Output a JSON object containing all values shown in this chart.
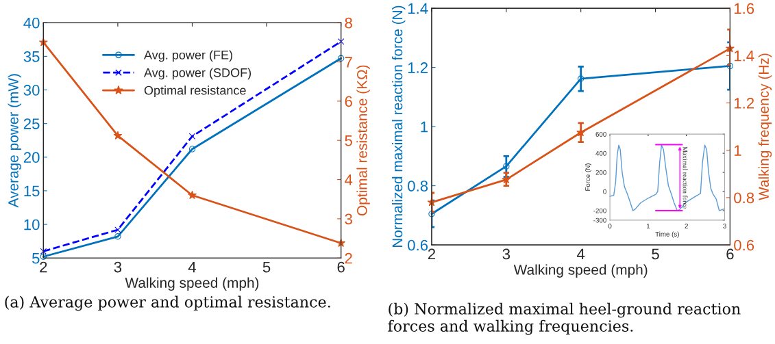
{
  "chart_data": [
    {
      "type": "line",
      "xlabel": "Walking speed (mph)",
      "ylabel": "Average power (mW)",
      "y2label": "Optimal resistance (KΩ)",
      "x": [
        2,
        3,
        4,
        6
      ],
      "xlim": [
        2,
        6
      ],
      "xticks": [
        2,
        3,
        4,
        5,
        6
      ],
      "ylim": [
        5,
        40
      ],
      "yticks": [
        5,
        10,
        15,
        20,
        25,
        30,
        35,
        40
      ],
      "y2lim": [
        2,
        8
      ],
      "y2ticks": [
        2,
        3,
        4,
        5,
        6,
        7,
        8
      ],
      "legend": "top",
      "grid": false,
      "series": [
        {
          "name": "Avg. power (FE)",
          "color": "#0072bd",
          "values": [
            5.2,
            8.2,
            21.2,
            34.7
          ],
          "marker": "circle",
          "line_style": "solid"
        },
        {
          "name": "Avg. power (SDOF)",
          "color": "#0000ff",
          "values": [
            6.0,
            9.2,
            23.1,
            37.2
          ],
          "marker": "cross",
          "line_style": "dashed"
        },
        {
          "name": "Optimal resistance",
          "color": "#d95319",
          "values": [
            7.5,
            5.12,
            3.6,
            2.38
          ],
          "marker": "star",
          "line_style": "solid",
          "axis": "y2"
        }
      ],
      "annotations": [
        "(a) Average power and optimal resistance."
      ]
    },
    {
      "type": "line",
      "xlabel": "Walking speed (mph)",
      "ylabel": "Normalized maximal reaction force (N)",
      "y2label": "Walking frequency (Hz)",
      "x": [
        2,
        3,
        4,
        6
      ],
      "xlim": [
        2,
        6
      ],
      "xticks": [
        2,
        3,
        4,
        5,
        6
      ],
      "ylim": [
        0.6,
        1.4
      ],
      "yticks": [
        0.6,
        0.8,
        1,
        1.2,
        1.4
      ],
      "y2lim": [
        0.6,
        1.6
      ],
      "y2ticks": [
        0.6,
        0.8,
        1,
        1.2,
        1.4,
        1.6
      ],
      "grid": false,
      "series": [
        {
          "color": "#0072bd",
          "values": [
            0.705,
            0.866,
            1.162,
            1.205
          ],
          "errors": [
            [
              0.66,
              0.75
            ],
            [
              0.83,
              0.9
            ],
            [
              1.12,
              1.203
            ],
            [
              1.125,
              1.285
            ]
          ],
          "marker": "circle",
          "line_style": "solid"
        },
        {
          "color": "#d95319",
          "values": [
            0.78,
            0.876,
            1.075,
            1.43
          ],
          "errors": [
            [
              0.74,
              0.82
            ],
            [
              0.85,
              0.905
            ],
            [
              1.035,
              1.115
            ],
            [
              1.36,
              1.51
            ]
          ],
          "marker": "star",
          "line_style": "solid",
          "axis": "y2"
        }
      ],
      "annotations": [
        "(b) Normalized maximal heel-ground reaction forces and walking frequencies."
      ]
    },
    {
      "type": "line",
      "xlabel": "Time (s)",
      "ylabel": "Force (N)",
      "xlim": [
        0,
        3
      ],
      "xticks": [
        0,
        1,
        2,
        3
      ],
      "ylim": [
        -300,
        600
      ],
      "yticks": [
        -300,
        -200,
        0,
        200,
        400,
        600
      ],
      "grid": false,
      "series": [
        {
          "color": "#5b9bd5",
          "line_style": "solid",
          "x": [
            0,
            0.1,
            0.15,
            0.19,
            0.23,
            0.27,
            0.32,
            0.38,
            0.45,
            0.52,
            0.6,
            0.66,
            0.8,
            1.0,
            1.2,
            1.25,
            1.3,
            1.35,
            1.4,
            1.46,
            1.53,
            1.6,
            1.68,
            1.76,
            1.82,
            2.0,
            2.2,
            2.37,
            2.42,
            2.48,
            2.53,
            2.58,
            2.64,
            2.7,
            2.78,
            2.86,
            2.93,
            3.0
          ],
          "values": [
            -50,
            -40,
            100,
            380,
            485,
            440,
            200,
            50,
            -20,
            -100,
            -200,
            -185,
            -120,
            -70,
            -30,
            0,
            300,
            485,
            440,
            250,
            60,
            -20,
            -120,
            -200,
            -190,
            -110,
            -60,
            -20,
            300,
            485,
            440,
            200,
            30,
            -30,
            -80,
            -200,
            -190,
            -180
          ]
        }
      ],
      "ref_lines": [
        {
          "axis": "y",
          "value": 490,
          "color": "#ff00ff"
        },
        {
          "axis": "y",
          "value": -200,
          "color": "#ff00ff"
        }
      ],
      "annotations": [
        "Maximal reaction force"
      ]
    }
  ]
}
